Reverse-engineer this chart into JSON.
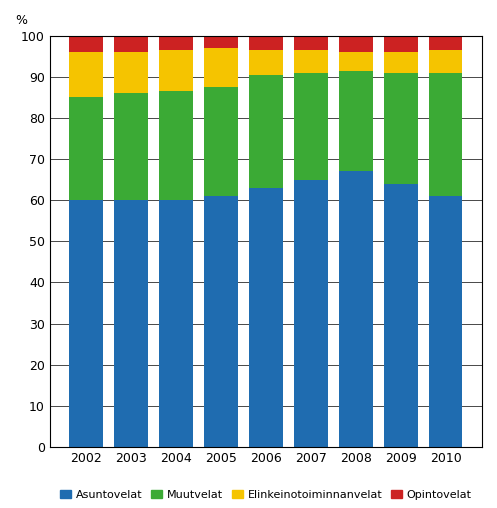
{
  "years": [
    2002,
    2003,
    2004,
    2005,
    2006,
    2007,
    2008,
    2009,
    2010
  ],
  "asuntovelat": [
    60.0,
    60.0,
    60.0,
    61.0,
    63.0,
    65.0,
    67.0,
    64.0,
    61.0
  ],
  "muutvelat": [
    25.0,
    26.0,
    26.5,
    26.5,
    27.5,
    26.0,
    24.5,
    27.0,
    30.0
  ],
  "elinkeinotoiminnanvelat": [
    11.0,
    10.0,
    10.0,
    9.5,
    6.0,
    5.5,
    4.5,
    5.0,
    5.5
  ],
  "opintovelat": [
    4.0,
    4.0,
    3.5,
    3.0,
    3.5,
    3.5,
    4.0,
    4.0,
    3.5
  ],
  "colors": {
    "asuntovelat": "#1F6CB0",
    "muutvelat": "#3BAA35",
    "elinkeinotoiminnanvelat": "#F5C400",
    "opintovelat": "#CC2222"
  },
  "legend_labels": [
    "Asuntovelat",
    "Muutvelat",
    "Elinkeinotoiminnanvelat",
    "Opintovelat"
  ],
  "percent_label": "%",
  "ylim": [
    0,
    100
  ],
  "yticks": [
    0,
    10,
    20,
    30,
    40,
    50,
    60,
    70,
    80,
    90,
    100
  ],
  "bar_width": 0.75,
  "figsize": [
    4.97,
    5.08
  ],
  "dpi": 100
}
